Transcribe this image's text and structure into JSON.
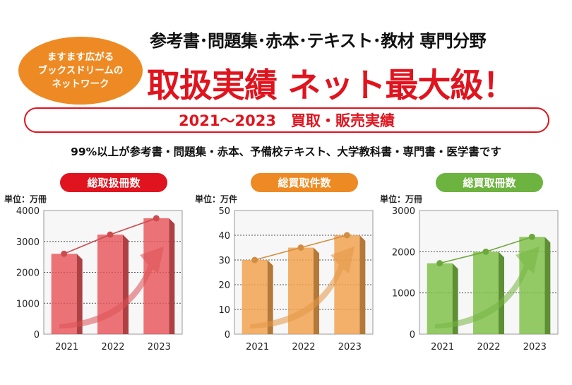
{
  "badge": {
    "line1": "ますます広がる",
    "line2": "ブックスドリームの",
    "line3": "ネットワーク"
  },
  "headline": {
    "top": "参考書･問題集･赤本･テキスト･教材 専門分野",
    "main": "取扱実績 ネット最大級！"
  },
  "banner": {
    "text": "2021～2023　買取・販売実績"
  },
  "note": "99%以上が参考書・問題集・赤本、予備校テキスト、大学教科書・専門書・医学書です",
  "colors": {
    "accent_red": "#e0141e",
    "badge_orange": "#ee8a23",
    "chart1": "#e8555a",
    "chart2": "#f0a04a",
    "chart3": "#7dbf45"
  },
  "chart_data": [
    {
      "type": "bar",
      "title": "総取扱冊数",
      "unit": "単位：万冊",
      "categories": [
        "2021",
        "2022",
        "2023"
      ],
      "values": [
        2600,
        3220,
        3750
      ],
      "ylim": [
        0,
        4000
      ],
      "yticks": [
        0,
        1000,
        2000,
        3000,
        4000
      ],
      "grid": true,
      "overlay_line": true,
      "color": "#e8555a"
    },
    {
      "type": "bar",
      "title": "総買取件数",
      "unit": "単位：万件",
      "categories": [
        "2021",
        "2022",
        "2023"
      ],
      "values": [
        30,
        35,
        40
      ],
      "ylim": [
        0,
        50
      ],
      "yticks": [
        0,
        10,
        20,
        30,
        40,
        50
      ],
      "grid": true,
      "overlay_line": true,
      "color": "#f0a04a"
    },
    {
      "type": "bar",
      "title": "総買取冊数",
      "unit": "単位：万冊",
      "categories": [
        "2021",
        "2022",
        "2023"
      ],
      "values": [
        1720,
        2000,
        2360
      ],
      "ylim": [
        0,
        3000
      ],
      "yticks": [
        0,
        1000,
        2000,
        3000
      ],
      "grid": true,
      "overlay_line": true,
      "color": "#7dbf45"
    }
  ]
}
